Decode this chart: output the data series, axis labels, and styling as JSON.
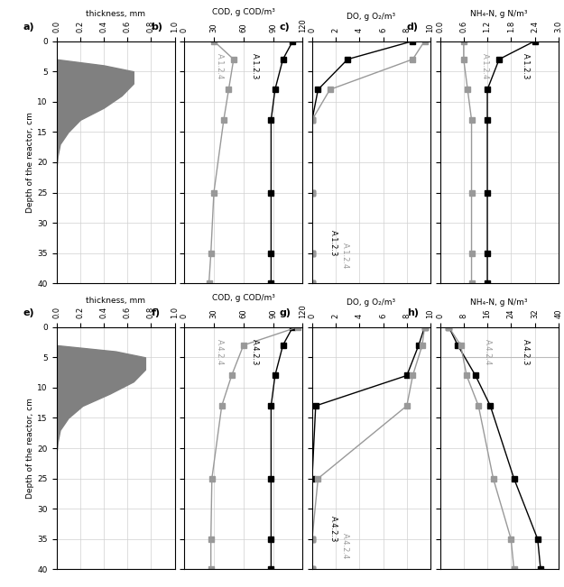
{
  "depth_ticks": [
    0,
    5,
    10,
    15,
    20,
    25,
    30,
    35,
    40
  ],
  "ylim": [
    0,
    40
  ],
  "biofilm_a_depth": [
    0,
    3,
    4,
    5,
    7,
    9,
    11,
    13,
    15,
    17,
    19,
    21,
    40
  ],
  "biofilm_a_thickness": [
    0,
    0,
    0.4,
    0.65,
    0.65,
    0.55,
    0.4,
    0.2,
    0.1,
    0.03,
    0.01,
    0.0,
    0
  ],
  "biofilm_e_depth": [
    0,
    3,
    4,
    5,
    7,
    9,
    11,
    13,
    15,
    17,
    19,
    21,
    40
  ],
  "biofilm_e_thickness": [
    0,
    0,
    0.5,
    0.75,
    0.75,
    0.65,
    0.45,
    0.22,
    0.1,
    0.03,
    0.01,
    0.0,
    0
  ],
  "COD_123_depth": [
    0,
    3,
    8,
    13,
    25,
    35,
    40
  ],
  "COD_123_vals": [
    110,
    100,
    92,
    88,
    88,
    88,
    88
  ],
  "COD_124_depth": [
    0,
    3,
    8,
    13,
    25,
    35,
    40
  ],
  "COD_124_vals": [
    30,
    50,
    45,
    40,
    30,
    27,
    25
  ],
  "DO_123_depth": [
    0,
    3,
    8,
    13,
    25,
    35,
    40
  ],
  "DO_123_vals": [
    8.5,
    3.0,
    0.5,
    0.0,
    0.0,
    0.0,
    0.0
  ],
  "DO_124_depth": [
    0,
    3,
    8,
    13,
    25,
    35,
    40
  ],
  "DO_124_vals": [
    9.5,
    8.5,
    1.5,
    0.0,
    0.0,
    0.0,
    0.0
  ],
  "NH4_123_depth": [
    0,
    3,
    8,
    13,
    25,
    35,
    40
  ],
  "NH4_123_vals": [
    2.4,
    1.5,
    1.2,
    1.2,
    1.2,
    1.2,
    1.2
  ],
  "NH4_124_depth": [
    0,
    3,
    8,
    13,
    25,
    35,
    40
  ],
  "NH4_124_vals": [
    0.6,
    0.6,
    0.7,
    0.8,
    0.8,
    0.8,
    0.8
  ],
  "COD_423_depth": [
    0,
    3,
    8,
    13,
    25,
    35,
    40
  ],
  "COD_423_vals": [
    110,
    100,
    92,
    88,
    88,
    88,
    88
  ],
  "COD_424_depth": [
    0,
    3,
    8,
    13,
    25,
    35,
    40
  ],
  "COD_424_vals": [
    115,
    60,
    48,
    38,
    28,
    27,
    27
  ],
  "DO_423_depth": [
    0,
    3,
    8,
    13,
    25,
    35,
    40
  ],
  "DO_423_vals": [
    9.5,
    9.0,
    8.0,
    0.3,
    0.0,
    0.0,
    0.0
  ],
  "DO_424_depth": [
    0,
    3,
    8,
    13,
    25,
    35,
    40
  ],
  "DO_424_vals": [
    9.5,
    9.3,
    8.5,
    8.0,
    0.5,
    0.0,
    0.0
  ],
  "NH4_423_depth": [
    0,
    3,
    8,
    13,
    25,
    35,
    40
  ],
  "NH4_423_vals": [
    3.0,
    6.0,
    12.0,
    17.0,
    25.0,
    33.0,
    34.0
  ],
  "NH4_424_depth": [
    0,
    3,
    8,
    13,
    25,
    35,
    40
  ],
  "NH4_424_vals": [
    3.0,
    7.0,
    9.0,
    13.0,
    18.0,
    24.0,
    25.0
  ],
  "color_dark": "#000000",
  "color_gray": "#999999",
  "color_fill": "#808080",
  "grid_color": "#d0d0d0",
  "marker": "s",
  "markersize": 4,
  "linewidth": 1.0
}
